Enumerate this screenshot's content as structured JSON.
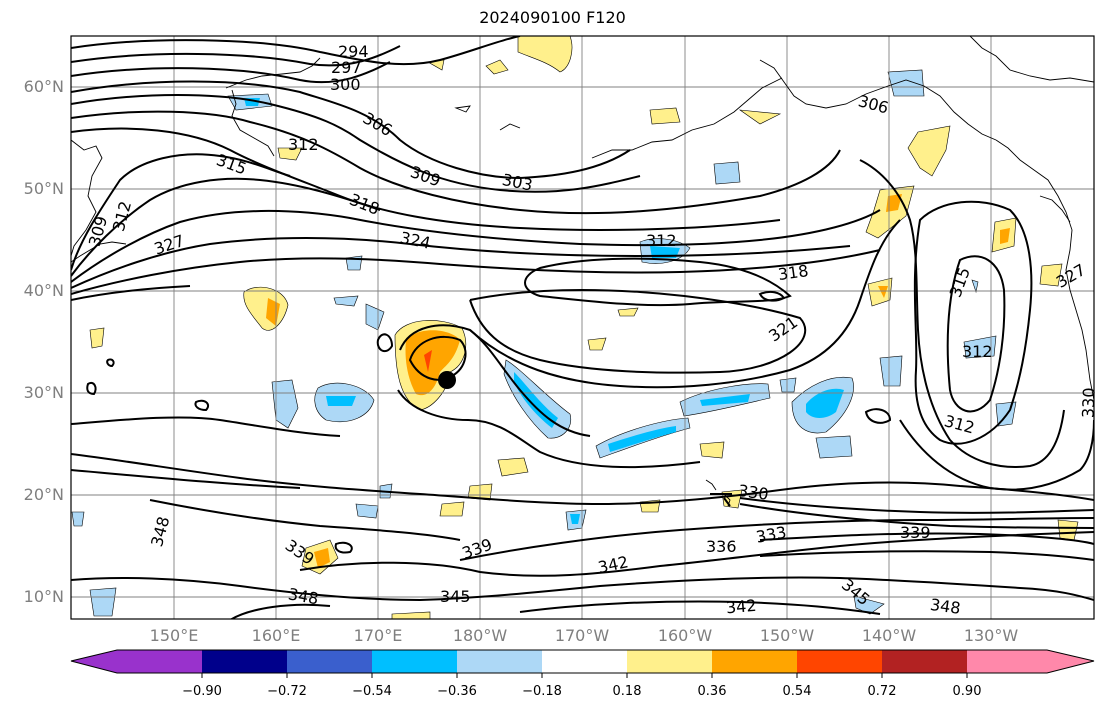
{
  "title": "2024090100 F120",
  "map": {
    "lat_labels": [
      "60°N",
      "50°N",
      "40°N",
      "30°N",
      "20°N",
      "10°N"
    ],
    "lon_labels": [
      "150°E",
      "160°E",
      "170°E",
      "180°W",
      "170°W",
      "160°W",
      "150°W",
      "140°W",
      "130°W"
    ],
    "contour_labels": [
      {
        "text": "294"
      },
      {
        "text": "297"
      },
      {
        "text": "300"
      },
      {
        "text": "306"
      },
      {
        "text": "312"
      },
      {
        "text": "315"
      },
      {
        "text": "306"
      },
      {
        "text": "309"
      },
      {
        "text": "303"
      },
      {
        "text": "318"
      },
      {
        "text": "324"
      },
      {
        "text": "327"
      },
      {
        "text": "312"
      },
      {
        "text": "309"
      },
      {
        "text": "312"
      },
      {
        "text": "318"
      },
      {
        "text": "321"
      },
      {
        "text": "315"
      },
      {
        "text": "327"
      },
      {
        "text": "312"
      },
      {
        "text": "330"
      },
      {
        "text": "312"
      },
      {
        "text": "330"
      },
      {
        "text": "333"
      },
      {
        "text": "336"
      },
      {
        "text": "339"
      },
      {
        "text": "339"
      },
      {
        "text": "342"
      },
      {
        "text": "345"
      },
      {
        "text": "348"
      },
      {
        "text": "348"
      },
      {
        "text": "339"
      },
      {
        "text": "342"
      },
      {
        "text": "345"
      },
      {
        "text": "348"
      }
    ],
    "colors": {
      "contour": "#000000",
      "coast": "#000000",
      "grid": "#808080",
      "storm_center": "#000000"
    }
  },
  "colorbar": {
    "tick_labels": [
      "−0.90",
      "−0.72",
      "−0.54",
      "−0.36",
      "−0.18",
      "0.18",
      "0.36",
      "0.54",
      "0.72",
      "0.90"
    ],
    "colors": [
      "#9932cc",
      "#00008b",
      "#3a5fcd",
      "#00bfff",
      "#add8f6",
      "#ffffff",
      "#fff08c",
      "#ffa500",
      "#ff4500",
      "#b22222",
      "#ff88aa"
    ]
  }
}
